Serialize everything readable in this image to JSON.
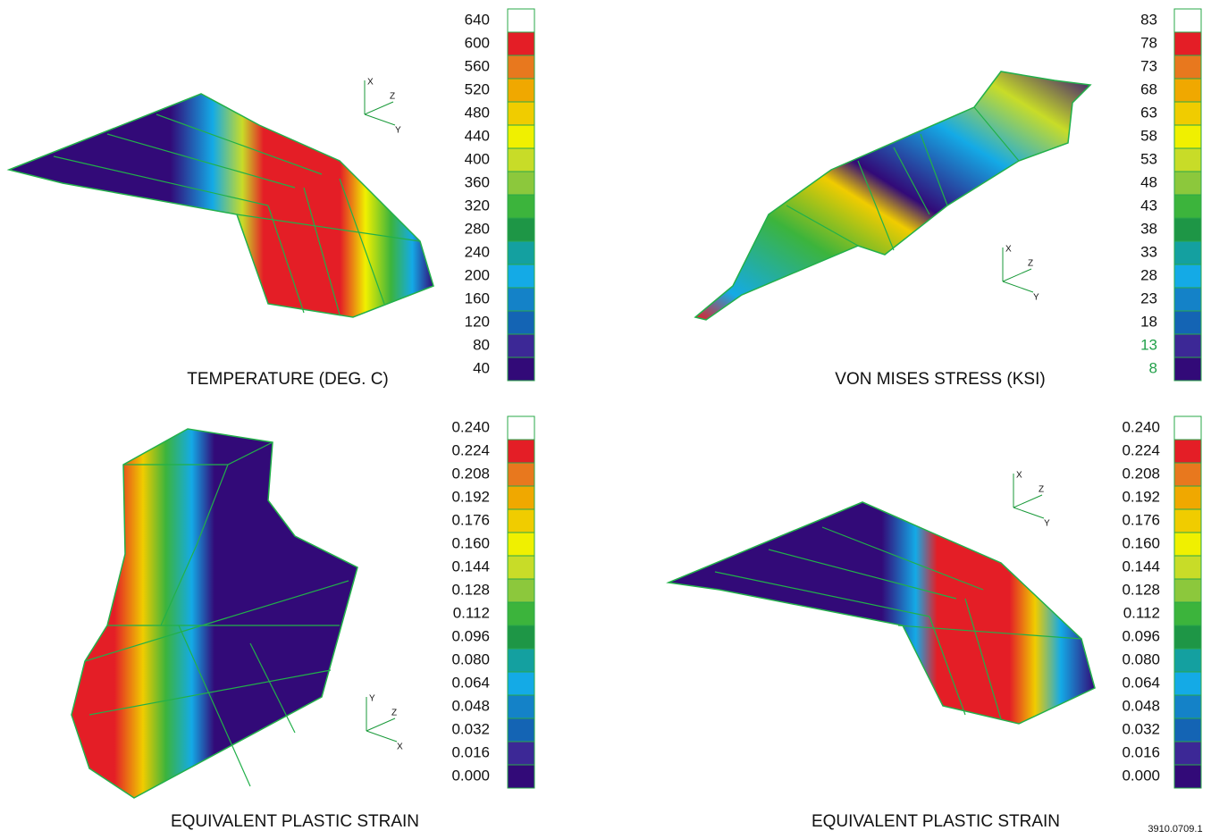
{
  "scale_colors": [
    "#ffffff",
    "#e41e26",
    "#e8781e",
    "#f0a800",
    "#f0cc00",
    "#f0f000",
    "#c8dc28",
    "#8cc83c",
    "#3cb43c",
    "#1e9646",
    "#14a0a0",
    "#14aae6",
    "#1482c8",
    "#1464b4",
    "#3c2896",
    "#320a78"
  ],
  "panels": [
    {
      "caption": "TEMPERATURE (DEG. C)",
      "axes": [
        "X",
        "Z",
        "Y"
      ],
      "scale": [
        "640",
        "600",
        "560",
        "520",
        "480",
        "440",
        "400",
        "360",
        "320",
        "280",
        "240",
        "200",
        "160",
        "120",
        "80",
        "40"
      ]
    },
    {
      "caption": "VON MISES STRESS (KSI)",
      "axes": [
        "X",
        "Z",
        "Y"
      ],
      "scale": [
        "83",
        "78",
        "73",
        "68",
        "63",
        "58",
        "53",
        "48",
        "43",
        "38",
        "33",
        "28",
        "23",
        "18",
        "13",
        "8"
      ]
    },
    {
      "caption": "EQUIVALENT PLASTIC STRAIN",
      "axes": [
        "Y",
        "Z",
        "X"
      ],
      "scale": [
        "0.240",
        "0.224",
        "0.208",
        "0.192",
        "0.176",
        "0.160",
        "0.144",
        "0.128",
        "0.112",
        "0.096",
        "0.080",
        "0.064",
        "0.048",
        "0.032",
        "0.016",
        "0.000"
      ]
    },
    {
      "caption": "EQUIVALENT PLASTIC STRAIN",
      "axes": [
        "X",
        "Z",
        "Y"
      ],
      "scale": [
        "0.240",
        "0.224",
        "0.208",
        "0.192",
        "0.176",
        "0.160",
        "0.144",
        "0.128",
        "0.112",
        "0.096",
        "0.080",
        "0.064",
        "0.048",
        "0.032",
        "0.016",
        "0.000"
      ]
    }
  ],
  "figure_id": "3910.0709.1"
}
